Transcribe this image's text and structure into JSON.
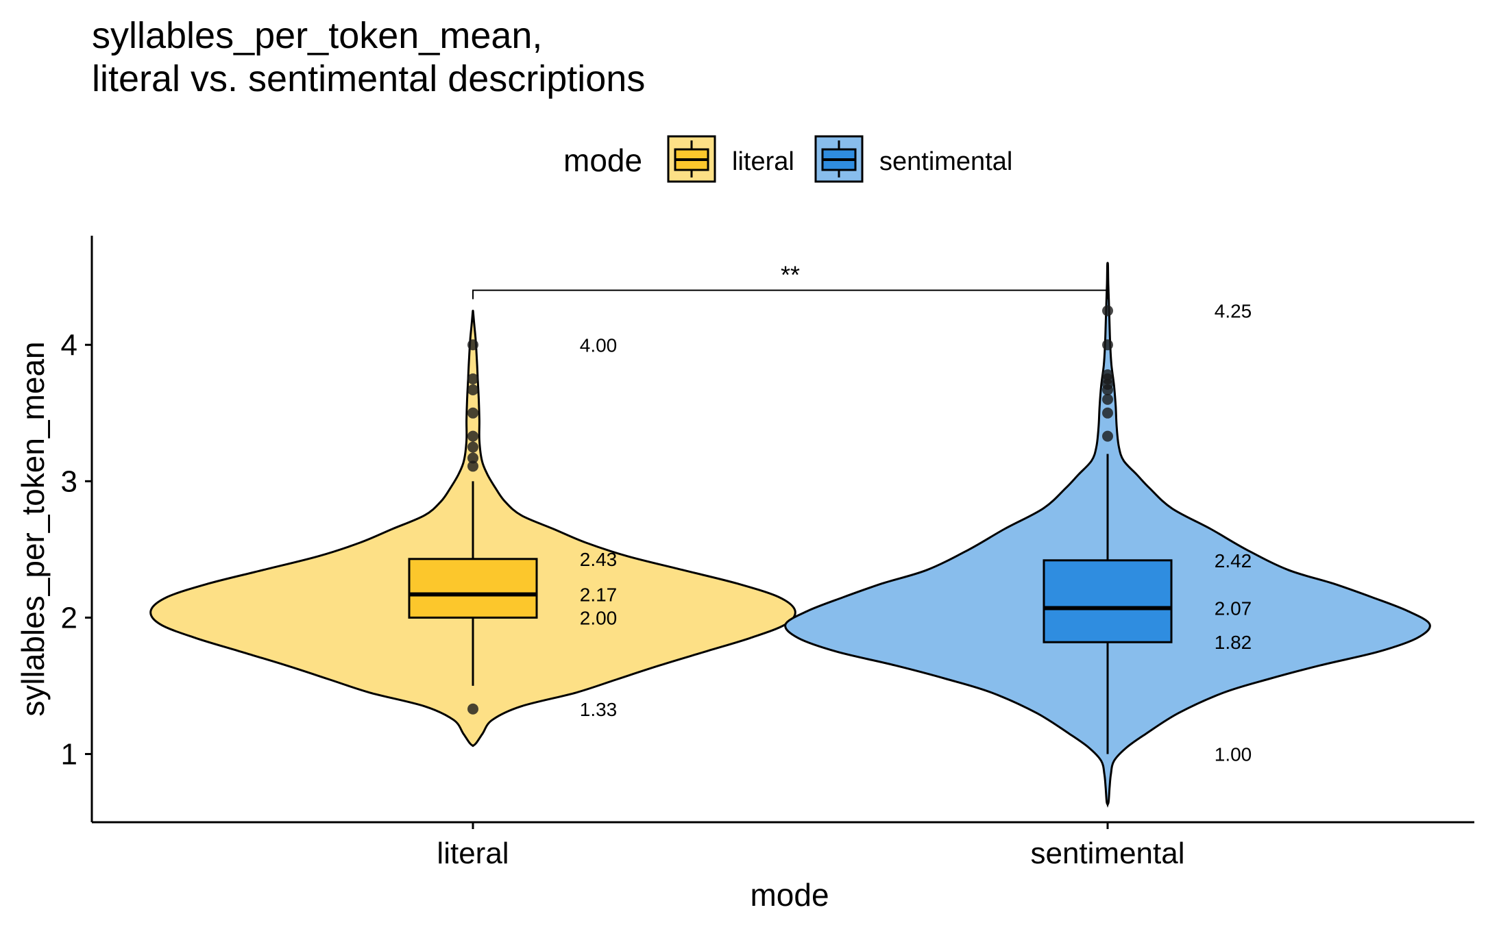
{
  "chart_data": {
    "type": "violin",
    "title_lines": [
      "syllables_per_token_mean,",
      "literal vs. sentimental descriptions"
    ],
    "xlabel": "mode",
    "ylabel": "syllables_per_token_mean",
    "categories": [
      "literal",
      "sentimental"
    ],
    "ylim": [
      0.5,
      4.8
    ],
    "y_ticks": [
      1,
      2,
      3,
      4
    ],
    "legend": {
      "title": "mode",
      "placement": "top",
      "entries": [
        {
          "label": "literal",
          "fill": "#fcc72c"
        },
        {
          "label": "sentimental",
          "fill": "#2f8de0"
        }
      ]
    },
    "significance": {
      "label": "**",
      "y": 4.4
    },
    "series": [
      {
        "name": "literal",
        "violin_color": "#fde086",
        "box_color": "#fcc72c",
        "box": {
          "q1": 2.0,
          "median": 2.17,
          "q3": 2.43,
          "whisker_low": 1.5,
          "whisker_high": 3.0,
          "min": 1.33,
          "max": 4.0
        },
        "annotations": [
          "4.00",
          "2.43",
          "2.17",
          "2.00",
          "1.33"
        ],
        "annotation_values": [
          4.0,
          2.43,
          2.17,
          2.0,
          1.33
        ],
        "outliers": [
          4.0,
          3.75,
          3.67,
          3.5,
          3.33,
          3.25,
          3.17,
          3.11,
          1.33
        ],
        "density": [
          [
            1.08,
            0.01
          ],
          [
            1.15,
            0.03
          ],
          [
            1.25,
            0.06
          ],
          [
            1.35,
            0.15
          ],
          [
            1.45,
            0.32
          ],
          [
            1.55,
            0.45
          ],
          [
            1.65,
            0.58
          ],
          [
            1.75,
            0.72
          ],
          [
            1.85,
            0.86
          ],
          [
            1.95,
            0.97
          ],
          [
            2.05,
            1.0
          ],
          [
            2.15,
            0.95
          ],
          [
            2.25,
            0.82
          ],
          [
            2.35,
            0.65
          ],
          [
            2.45,
            0.48
          ],
          [
            2.55,
            0.35
          ],
          [
            2.65,
            0.25
          ],
          [
            2.75,
            0.15
          ],
          [
            2.85,
            0.1
          ],
          [
            2.95,
            0.07
          ],
          [
            3.05,
            0.045
          ],
          [
            3.15,
            0.028
          ],
          [
            3.3,
            0.02
          ],
          [
            3.45,
            0.02
          ],
          [
            3.6,
            0.018
          ],
          [
            3.75,
            0.015
          ],
          [
            3.9,
            0.012
          ],
          [
            4.05,
            0.008
          ],
          [
            4.15,
            0.004
          ],
          [
            4.23,
            0.001
          ]
        ]
      },
      {
        "name": "sentimental",
        "violin_color": "#88bdec",
        "box_color": "#2f8de0",
        "box": {
          "q1": 1.82,
          "median": 2.07,
          "q3": 2.42,
          "whisker_low": 1.0,
          "whisker_high": 3.2,
          "min": 1.0,
          "max": 4.25
        },
        "annotations": [
          "4.25",
          "2.42",
          "2.07",
          "1.82",
          "1.00"
        ],
        "annotation_values": [
          4.25,
          2.42,
          2.07,
          1.82,
          1.0
        ],
        "outliers": [
          4.25,
          4.0,
          3.78,
          3.75,
          3.71,
          3.67,
          3.6,
          3.5,
          3.33
        ],
        "density": [
          [
            0.65,
            0.003
          ],
          [
            0.75,
            0.006
          ],
          [
            0.85,
            0.01
          ],
          [
            0.95,
            0.02
          ],
          [
            1.05,
            0.06
          ],
          [
            1.15,
            0.12
          ],
          [
            1.3,
            0.22
          ],
          [
            1.45,
            0.36
          ],
          [
            1.55,
            0.5
          ],
          [
            1.65,
            0.66
          ],
          [
            1.75,
            0.84
          ],
          [
            1.85,
            0.96
          ],
          [
            1.95,
            1.0
          ],
          [
            2.05,
            0.93
          ],
          [
            2.15,
            0.82
          ],
          [
            2.25,
            0.7
          ],
          [
            2.35,
            0.56
          ],
          [
            2.5,
            0.43
          ],
          [
            2.65,
            0.32
          ],
          [
            2.8,
            0.2
          ],
          [
            2.95,
            0.13
          ],
          [
            3.05,
            0.09
          ],
          [
            3.15,
            0.05
          ],
          [
            3.25,
            0.035
          ],
          [
            3.4,
            0.028
          ],
          [
            3.55,
            0.025
          ],
          [
            3.7,
            0.02
          ],
          [
            3.85,
            0.012
          ],
          [
            4.0,
            0.008
          ],
          [
            4.15,
            0.006
          ],
          [
            4.3,
            0.004
          ],
          [
            4.45,
            0.002
          ],
          [
            4.58,
            0.001
          ]
        ]
      }
    ]
  }
}
